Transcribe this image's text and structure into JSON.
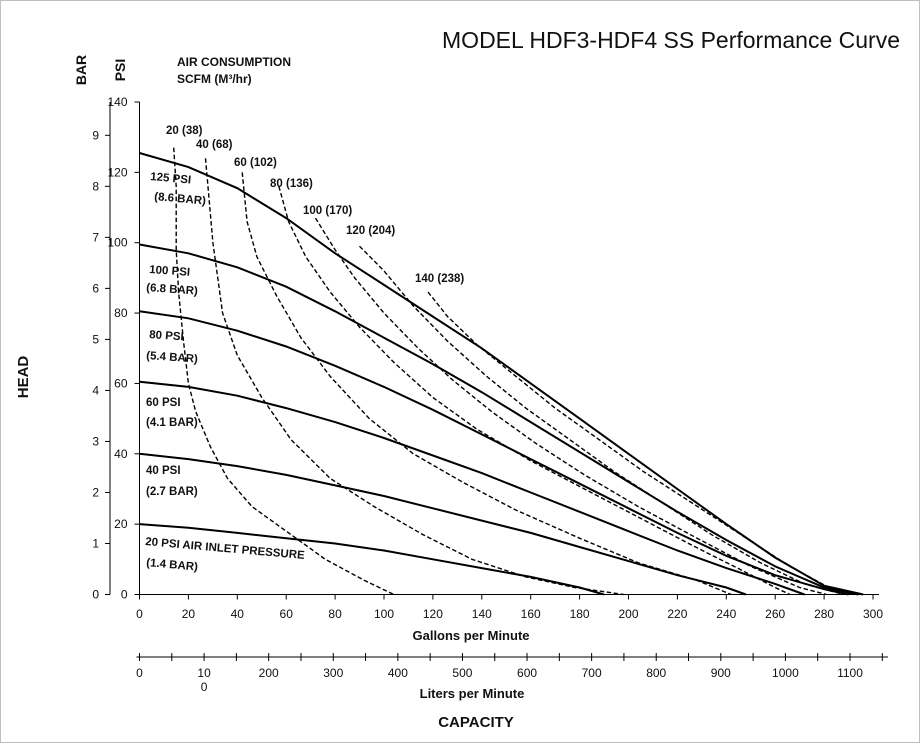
{
  "chart_data": {
    "type": "line",
    "title": "MODEL HDF3-HDF4 SS Performance Curve",
    "xlabel": "Gallons per Minute",
    "x2label": "Liters per Minute",
    "capacity_label": "CAPACITY",
    "ylabel": "HEAD",
    "y_unit_psi": "PSI",
    "y_unit_bar": "BAR",
    "air_header_line1": "AIR CONSUMPTION",
    "air_header_line2": "SCFM (M³/hr)",
    "xlim": [
      0,
      300
    ],
    "ylim": [
      0,
      140
    ],
    "x_ticks": [
      "0",
      "20",
      "40",
      "60",
      "80",
      "100",
      "120",
      "140",
      "160",
      "180",
      "200",
      "220",
      "240",
      "260",
      "280",
      "300"
    ],
    "y_ticks": [
      "0",
      "20",
      "40",
      "60",
      "80",
      "100",
      "120",
      "140"
    ],
    "bar_ticks": [
      {
        "bar": 0,
        "label": "0"
      },
      {
        "bar": 1,
        "label": "1"
      },
      {
        "bar": 2,
        "label": "2"
      },
      {
        "bar": 3,
        "label": "3"
      },
      {
        "bar": 4,
        "label": "4"
      },
      {
        "bar": 5,
        "label": "5"
      },
      {
        "bar": 6,
        "label": "6"
      },
      {
        "bar": 7,
        "label": "7"
      },
      {
        "bar": 8,
        "label": "8"
      },
      {
        "bar": 9,
        "label": "9"
      }
    ],
    "lpm_ticks": [
      {
        "lpm": 0,
        "label": "0"
      },
      {
        "lpm": 100,
        "label": "10\n0"
      },
      {
        "lpm": 200,
        "label": "200"
      },
      {
        "lpm": 300,
        "label": "300"
      },
      {
        "lpm": 400,
        "label": "400"
      },
      {
        "lpm": 500,
        "label": "500"
      },
      {
        "lpm": 600,
        "label": "600"
      },
      {
        "lpm": 700,
        "label": "700"
      },
      {
        "lpm": 800,
        "label": "800"
      },
      {
        "lpm": 900,
        "label": "900"
      },
      {
        "lpm": 1000,
        "label": "1000"
      },
      {
        "lpm": 1100,
        "label": "1100"
      }
    ],
    "pressure_series": [
      {
        "label1": "125 PSI",
        "label2": "(8.6 BAR)",
        "points": [
          [
            0,
            125.5
          ],
          [
            20,
            121.5
          ],
          [
            40,
            115.5
          ],
          [
            60,
            107
          ],
          [
            80,
            97
          ],
          [
            100,
            88
          ],
          [
            120,
            79
          ],
          [
            140,
            70
          ],
          [
            160,
            60
          ],
          [
            180,
            50
          ],
          [
            200,
            40
          ],
          [
            220,
            30
          ],
          [
            240,
            20
          ],
          [
            260,
            10.5
          ],
          [
            280,
            2.5
          ],
          [
            296,
            0
          ]
        ]
      },
      {
        "label1": "100 PSI",
        "label2": "(6.8 BAR)",
        "points": [
          [
            0,
            99.5
          ],
          [
            20,
            97
          ],
          [
            40,
            93
          ],
          [
            60,
            87.5
          ],
          [
            80,
            80.5
          ],
          [
            100,
            73
          ],
          [
            120,
            65.5
          ],
          [
            140,
            57.5
          ],
          [
            160,
            49
          ],
          [
            180,
            40.5
          ],
          [
            200,
            32
          ],
          [
            220,
            23.5
          ],
          [
            240,
            15.5
          ],
          [
            260,
            8
          ],
          [
            280,
            2
          ],
          [
            294,
            0
          ]
        ]
      },
      {
        "label1": "80 PSI",
        "label2": "(5.4 BAR)",
        "points": [
          [
            0,
            80.5
          ],
          [
            20,
            78.5
          ],
          [
            40,
            75
          ],
          [
            60,
            70.5
          ],
          [
            80,
            65
          ],
          [
            100,
            59
          ],
          [
            120,
            52.5
          ],
          [
            140,
            45.5
          ],
          [
            160,
            38.5
          ],
          [
            180,
            31.5
          ],
          [
            200,
            24.5
          ],
          [
            220,
            17.5
          ],
          [
            240,
            11
          ],
          [
            260,
            5.5
          ],
          [
            280,
            1.5
          ],
          [
            290,
            0
          ]
        ]
      },
      {
        "label1": "60 PSI",
        "label2": "(4.1 BAR)",
        "points": [
          [
            0,
            60.5
          ],
          [
            20,
            59
          ],
          [
            40,
            56.5
          ],
          [
            60,
            53
          ],
          [
            80,
            49
          ],
          [
            100,
            44.5
          ],
          [
            120,
            39.5
          ],
          [
            140,
            34.5
          ],
          [
            160,
            29
          ],
          [
            180,
            23.5
          ],
          [
            200,
            18
          ],
          [
            220,
            12.5
          ],
          [
            240,
            7.5
          ],
          [
            260,
            3
          ],
          [
            272,
            0
          ]
        ]
      },
      {
        "label1": "40 PSI",
        "label2": "(2.7 BAR)",
        "points": [
          [
            0,
            40
          ],
          [
            20,
            38.5
          ],
          [
            40,
            36.5
          ],
          [
            60,
            34
          ],
          [
            80,
            31
          ],
          [
            100,
            28
          ],
          [
            120,
            24.5
          ],
          [
            140,
            21
          ],
          [
            160,
            17.5
          ],
          [
            180,
            13.5
          ],
          [
            200,
            9.5
          ],
          [
            220,
            5.5
          ],
          [
            240,
            2
          ],
          [
            248,
            0
          ]
        ]
      },
      {
        "label1": "20 PSI AIR INLET PRESSURE",
        "label2": "(1.4 BAR)",
        "points": [
          [
            0,
            20
          ],
          [
            20,
            19
          ],
          [
            40,
            17.5
          ],
          [
            60,
            16
          ],
          [
            80,
            14.5
          ],
          [
            100,
            12.5
          ],
          [
            120,
            10
          ],
          [
            140,
            7.5
          ],
          [
            160,
            5
          ],
          [
            180,
            2
          ],
          [
            190,
            0
          ]
        ]
      }
    ],
    "air_series": [
      {
        "label": "20 (38)",
        "points": [
          [
            14,
            127
          ],
          [
            15,
            116
          ],
          [
            15,
            98
          ],
          [
            16,
            86
          ],
          [
            18,
            72
          ],
          [
            20,
            60
          ],
          [
            23,
            52
          ],
          [
            29,
            42
          ],
          [
            36,
            33
          ],
          [
            46,
            25
          ],
          [
            62,
            17
          ],
          [
            76,
            10
          ],
          [
            92,
            4
          ],
          [
            104,
            0
          ]
        ]
      },
      {
        "label": "40 (68)",
        "points": [
          [
            27,
            124
          ],
          [
            30,
            100
          ],
          [
            34,
            80
          ],
          [
            40,
            68
          ],
          [
            50,
            56
          ],
          [
            62,
            44
          ],
          [
            78,
            33
          ],
          [
            96,
            25
          ],
          [
            116,
            17
          ],
          [
            136,
            10
          ],
          [
            158,
            5
          ],
          [
            178,
            2
          ],
          [
            198,
            0
          ]
        ]
      },
      {
        "label": "60 (102)",
        "points": [
          [
            42,
            120
          ],
          [
            44,
            106
          ],
          [
            48,
            96
          ],
          [
            56,
            85
          ],
          [
            66,
            73
          ],
          [
            78,
            62
          ],
          [
            94,
            50
          ],
          [
            112,
            40
          ],
          [
            132,
            32
          ],
          [
            154,
            24
          ],
          [
            180,
            16
          ],
          [
            204,
            9
          ],
          [
            228,
            4
          ],
          [
            242,
            0
          ]
        ]
      },
      {
        "label": "80 (136)",
        "points": [
          [
            57,
            116
          ],
          [
            61,
            106
          ],
          [
            68,
            96
          ],
          [
            78,
            86
          ],
          [
            90,
            76
          ],
          [
            104,
            66
          ],
          [
            120,
            56
          ],
          [
            138,
            47
          ],
          [
            160,
            38
          ],
          [
            182,
            30
          ],
          [
            204,
            22
          ],
          [
            226,
            14
          ],
          [
            246,
            7
          ],
          [
            260,
            2
          ],
          [
            266,
            0
          ]
        ]
      },
      {
        "label": "100 (170)",
        "points": [
          [
            72,
            107
          ],
          [
            80,
            98
          ],
          [
            88,
            90
          ],
          [
            100,
            80
          ],
          [
            114,
            70
          ],
          [
            128,
            61
          ],
          [
            144,
            52
          ],
          [
            162,
            43
          ],
          [
            182,
            34
          ],
          [
            204,
            25
          ],
          [
            228,
            16
          ],
          [
            250,
            8
          ],
          [
            270,
            2
          ],
          [
            281,
            0
          ]
        ]
      },
      {
        "label": "120 (204)",
        "points": [
          [
            90,
            99
          ],
          [
            100,
            92
          ],
          [
            112,
            82
          ],
          [
            126,
            72
          ],
          [
            142,
            62
          ],
          [
            158,
            53
          ],
          [
            176,
            44
          ],
          [
            194,
            35
          ],
          [
            214,
            26
          ],
          [
            234,
            17
          ],
          [
            254,
            9
          ],
          [
            272,
            3
          ],
          [
            288,
            0
          ]
        ]
      },
      {
        "label": "140 (238)",
        "points": [
          [
            118,
            86
          ],
          [
            126,
            79
          ],
          [
            138,
            71
          ],
          [
            154,
            62
          ],
          [
            170,
            53
          ],
          [
            188,
            44
          ],
          [
            206,
            35
          ],
          [
            226,
            26
          ],
          [
            246,
            17
          ],
          [
            266,
            8
          ],
          [
            282,
            2
          ],
          [
            292,
            0
          ]
        ]
      }
    ]
  }
}
